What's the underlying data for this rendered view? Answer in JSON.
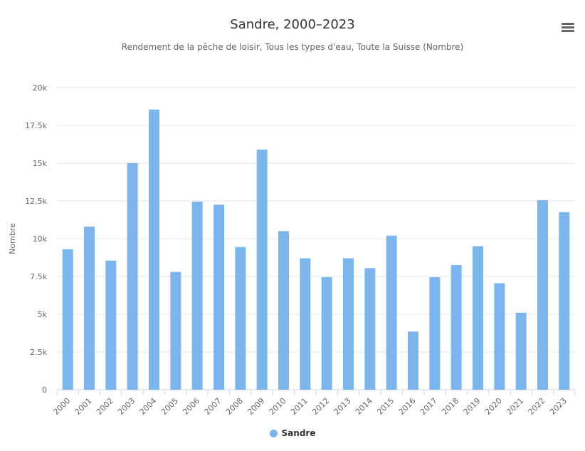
{
  "chart_data": {
    "type": "bar",
    "title": "Sandre, 2000–2023",
    "subtitle": "Rendement de la pêche de loisir, Tous les types d'eau, Toute la Suisse (Nombre)",
    "ylabel": "Nombre",
    "xlabel": "",
    "ylim": [
      0,
      20000
    ],
    "yticks": [
      {
        "value": 0,
        "label": "0"
      },
      {
        "value": 2500,
        "label": "2.5k"
      },
      {
        "value": 5000,
        "label": "5k"
      },
      {
        "value": 7500,
        "label": "7.5k"
      },
      {
        "value": 10000,
        "label": "10k"
      },
      {
        "value": 12500,
        "label": "12.5k"
      },
      {
        "value": 15000,
        "label": "15k"
      },
      {
        "value": 17500,
        "label": "17.5k"
      },
      {
        "value": 20000,
        "label": "20k"
      }
    ],
    "categories": [
      "2000",
      "2001",
      "2002",
      "2003",
      "2004",
      "2005",
      "2006",
      "2007",
      "2008",
      "2009",
      "2010",
      "2011",
      "2012",
      "2013",
      "2014",
      "2015",
      "2016",
      "2017",
      "2018",
      "2019",
      "2020",
      "2021",
      "2022",
      "2023"
    ],
    "series": [
      {
        "name": "Sandre",
        "color": "#7cb5ec",
        "values": [
          9300,
          10800,
          8550,
          15000,
          18550,
          7800,
          12450,
          12250,
          9450,
          15900,
          10500,
          8700,
          7450,
          8700,
          8050,
          10200,
          3850,
          7450,
          8250,
          9500,
          7050,
          5100,
          12550,
          11750
        ]
      }
    ],
    "grid": true,
    "legend_position": "bottom-center"
  },
  "menu_icon": "hamburger-menu-icon"
}
